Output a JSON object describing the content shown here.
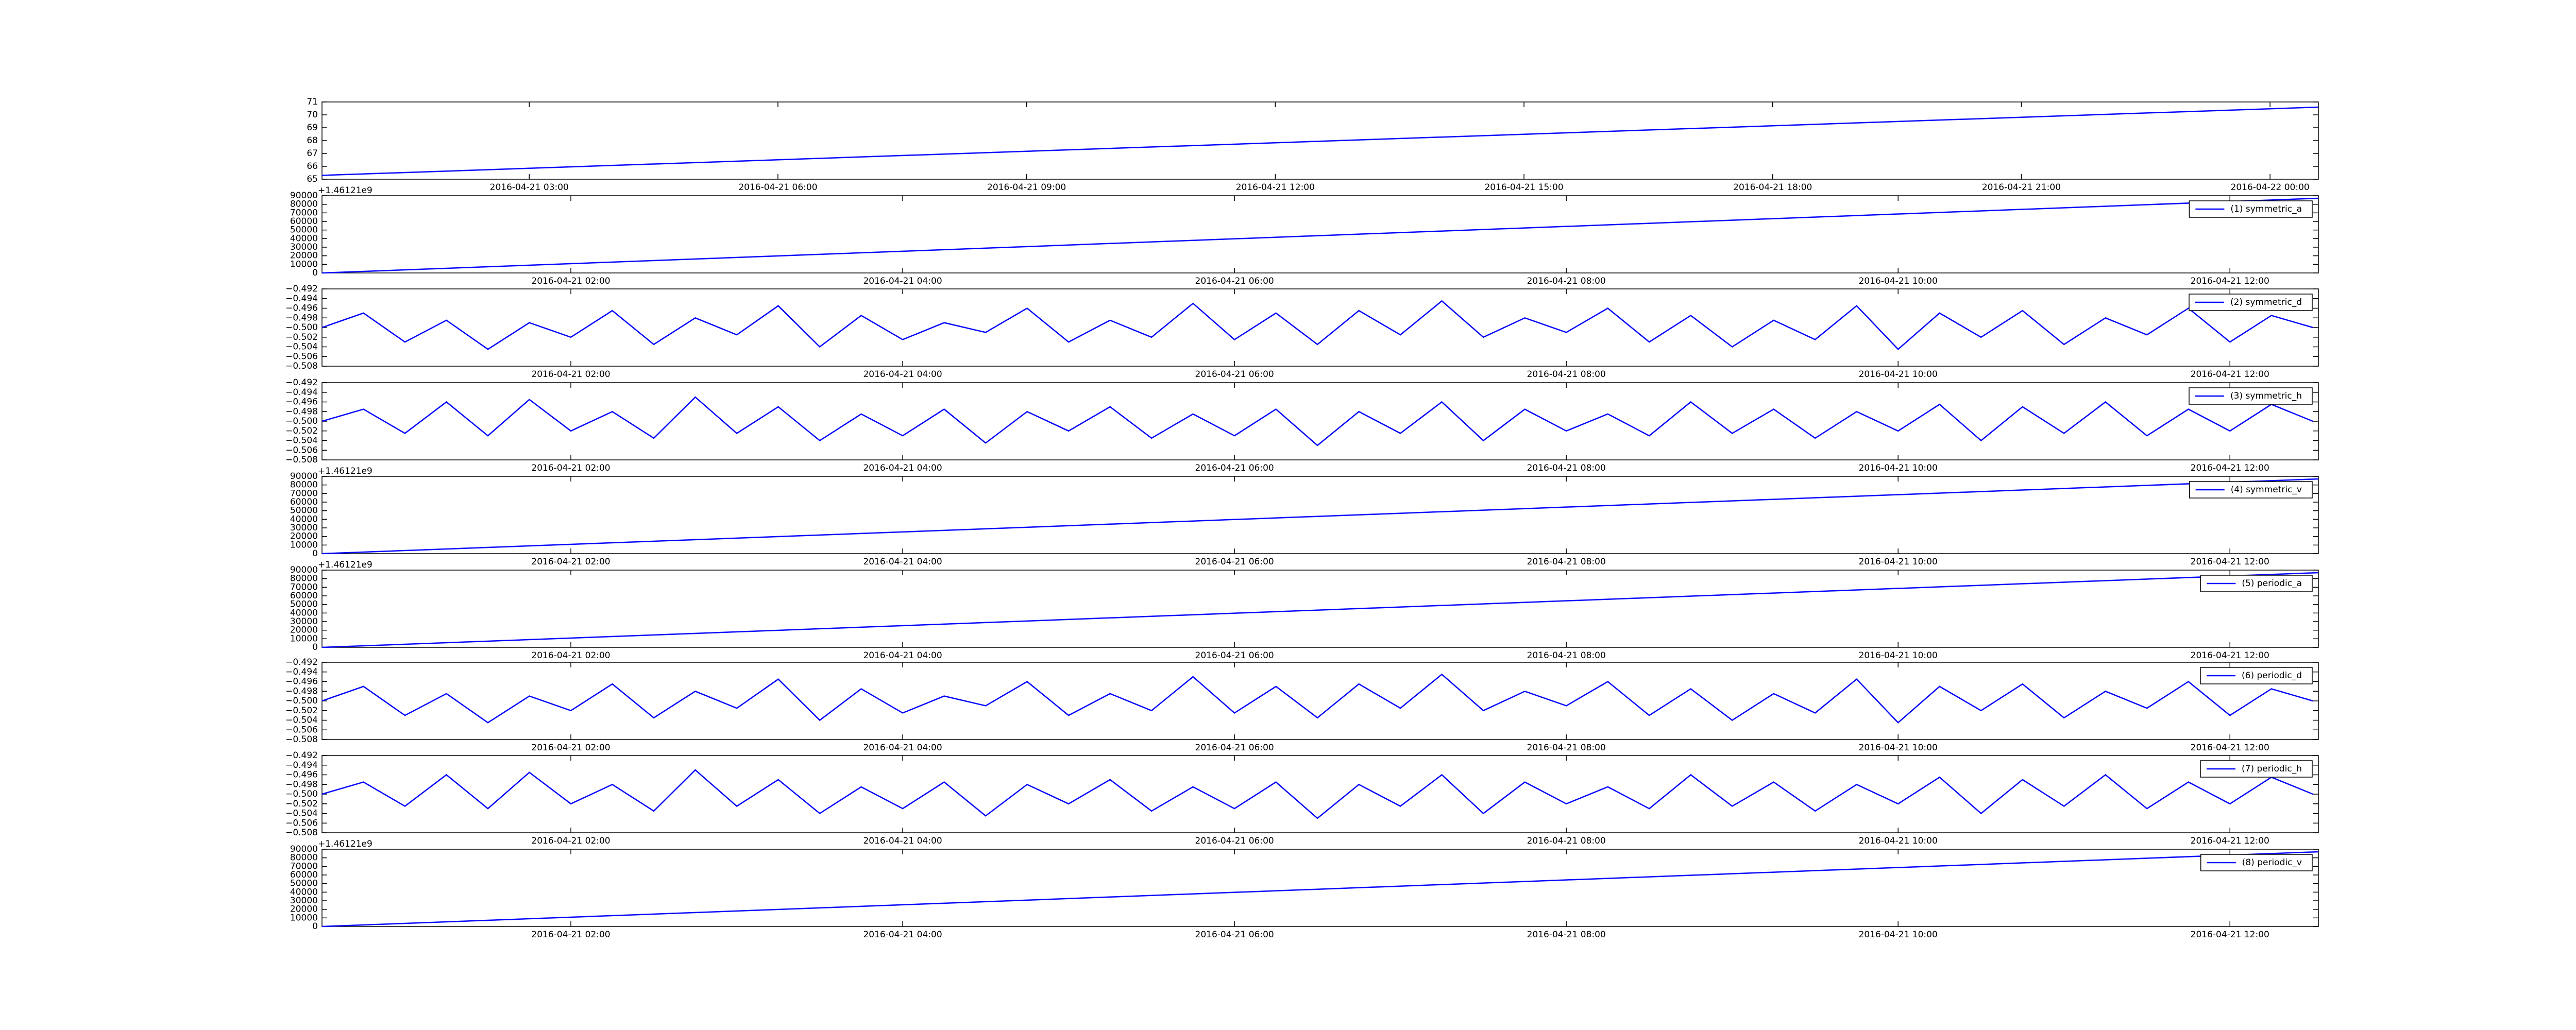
{
  "chart_data": [
    {
      "type": "line",
      "x": [
        "2016-04-21 00:30",
        "2016-04-22 00:35"
      ],
      "series": [
        {
          "color": "#0000ff",
          "values": [
            65.3,
            70.6
          ]
        }
      ],
      "xlim": [
        "2016-04-21 00:30",
        "2016-04-22 00:35"
      ],
      "xticks": [
        "2016-04-21 03:00",
        "2016-04-21 06:00",
        "2016-04-21 09:00",
        "2016-04-21 12:00",
        "2016-04-21 15:00",
        "2016-04-21 18:00",
        "2016-04-21 21:00",
        "2016-04-22 00:00"
      ],
      "ylim": [
        65,
        71
      ],
      "yticks": [
        65,
        66,
        67,
        68,
        69,
        70,
        71
      ]
    },
    {
      "type": "line",
      "offset_text": "+1.46121e9",
      "x": [
        "2016-04-21 00:30",
        "2016-04-21 12:32"
      ],
      "series": [
        {
          "name": "(1) symmetric_a",
          "color": "#0000ff",
          "values": [
            0,
            87000
          ]
        }
      ],
      "xlim": [
        "2016-04-21 00:30",
        "2016-04-21 12:32"
      ],
      "xticks": [
        "2016-04-21 02:00",
        "2016-04-21 04:00",
        "2016-04-21 06:00",
        "2016-04-21 08:00",
        "2016-04-21 10:00",
        "2016-04-21 12:00"
      ],
      "ylim": [
        0,
        90000
      ],
      "yticks": [
        0,
        10000,
        20000,
        30000,
        40000,
        50000,
        60000,
        70000,
        80000,
        90000
      ],
      "legend": "upper right"
    },
    {
      "type": "line",
      "x": [
        "2016-04-21 00:30",
        "2016-04-21 00:45",
        "2016-04-21 01:00",
        "2016-04-21 01:15",
        "2016-04-21 01:30",
        "2016-04-21 01:45",
        "2016-04-21 02:00",
        "2016-04-21 02:15",
        "2016-04-21 02:30",
        "2016-04-21 02:45",
        "2016-04-21 03:00",
        "2016-04-21 03:15",
        "2016-04-21 03:30",
        "2016-04-21 03:45",
        "2016-04-21 04:00",
        "2016-04-21 04:15",
        "2016-04-21 04:30",
        "2016-04-21 04:45",
        "2016-04-21 05:00",
        "2016-04-21 05:15",
        "2016-04-21 05:30",
        "2016-04-21 05:45",
        "2016-04-21 06:00",
        "2016-04-21 06:15",
        "2016-04-21 06:30",
        "2016-04-21 06:45",
        "2016-04-21 07:00",
        "2016-04-21 07:15",
        "2016-04-21 07:30",
        "2016-04-21 07:45",
        "2016-04-21 08:00",
        "2016-04-21 08:15",
        "2016-04-21 08:30",
        "2016-04-21 08:45",
        "2016-04-21 09:00",
        "2016-04-21 09:15",
        "2016-04-21 09:30",
        "2016-04-21 09:45",
        "2016-04-21 10:00",
        "2016-04-21 10:15",
        "2016-04-21 10:30",
        "2016-04-21 10:45",
        "2016-04-21 11:00",
        "2016-04-21 11:15",
        "2016-04-21 11:30",
        "2016-04-21 11:45",
        "2016-04-21 12:00",
        "2016-04-21 12:15",
        "2016-04-21 12:30"
      ],
      "series": [
        {
          "name": "(2) symmetric_d",
          "color": "#0000ff",
          "values": [
            -0.5,
            -0.497,
            -0.503,
            -0.4985,
            -0.5045,
            -0.499,
            -0.502,
            -0.4965,
            -0.5035,
            -0.498,
            -0.5015,
            -0.4955,
            -0.504,
            -0.4975,
            -0.5025,
            -0.499,
            -0.501,
            -0.496,
            -0.503,
            -0.4985,
            -0.502,
            -0.495,
            -0.5025,
            -0.497,
            -0.5035,
            -0.4965,
            -0.5015,
            -0.4945,
            -0.502,
            -0.498,
            -0.501,
            -0.496,
            -0.503,
            -0.4975,
            -0.504,
            -0.4985,
            -0.5025,
            -0.4955,
            -0.5045,
            -0.497,
            -0.502,
            -0.4965,
            -0.5035,
            -0.498,
            -0.5015,
            -0.496,
            -0.503,
            -0.4975,
            -0.5
          ]
        }
      ],
      "xlim": [
        "2016-04-21 00:30",
        "2016-04-21 12:32"
      ],
      "xticks": [
        "2016-04-21 02:00",
        "2016-04-21 04:00",
        "2016-04-21 06:00",
        "2016-04-21 08:00",
        "2016-04-21 10:00",
        "2016-04-21 12:00"
      ],
      "ylim": [
        -0.508,
        -0.492
      ],
      "yticks": [
        {
          "value": -0.508,
          "label": "−0.508"
        },
        {
          "value": -0.506,
          "label": "−0.506"
        },
        {
          "value": -0.504,
          "label": "−0.504"
        },
        {
          "value": -0.502,
          "label": "−0.502"
        },
        {
          "value": -0.5,
          "label": "−0.500"
        },
        {
          "value": -0.498,
          "label": "−0.498"
        },
        {
          "value": -0.496,
          "label": "−0.496"
        },
        {
          "value": -0.494,
          "label": "−0.494"
        },
        {
          "value": -0.492,
          "label": "−0.492"
        }
      ],
      "legend": "upper right"
    },
    {
      "type": "line",
      "x": [
        "2016-04-21 00:30",
        "2016-04-21 00:45",
        "2016-04-21 01:00",
        "2016-04-21 01:15",
        "2016-04-21 01:30",
        "2016-04-21 01:45",
        "2016-04-21 02:00",
        "2016-04-21 02:15",
        "2016-04-21 02:30",
        "2016-04-21 02:45",
        "2016-04-21 03:00",
        "2016-04-21 03:15",
        "2016-04-21 03:30",
        "2016-04-21 03:45",
        "2016-04-21 04:00",
        "2016-04-21 04:15",
        "2016-04-21 04:30",
        "2016-04-21 04:45",
        "2016-04-21 05:00",
        "2016-04-21 05:15",
        "2016-04-21 05:30",
        "2016-04-21 05:45",
        "2016-04-21 06:00",
        "2016-04-21 06:15",
        "2016-04-21 06:30",
        "2016-04-21 06:45",
        "2016-04-21 07:00",
        "2016-04-21 07:15",
        "2016-04-21 07:30",
        "2016-04-21 07:45",
        "2016-04-21 08:00",
        "2016-04-21 08:15",
        "2016-04-21 08:30",
        "2016-04-21 08:45",
        "2016-04-21 09:00",
        "2016-04-21 09:15",
        "2016-04-21 09:30",
        "2016-04-21 09:45",
        "2016-04-21 10:00",
        "2016-04-21 10:15",
        "2016-04-21 10:30",
        "2016-04-21 10:45",
        "2016-04-21 11:00",
        "2016-04-21 11:15",
        "2016-04-21 11:30",
        "2016-04-21 11:45",
        "2016-04-21 12:00",
        "2016-04-21 12:15",
        "2016-04-21 12:30"
      ],
      "series": [
        {
          "name": "(3) symmetric_h",
          "color": "#0000ff",
          "values": [
            -0.5,
            -0.4975,
            -0.5025,
            -0.496,
            -0.503,
            -0.4955,
            -0.502,
            -0.498,
            -0.5035,
            -0.495,
            -0.5025,
            -0.497,
            -0.504,
            -0.4985,
            -0.503,
            -0.4975,
            -0.5045,
            -0.498,
            -0.502,
            -0.497,
            -0.5035,
            -0.4985,
            -0.503,
            -0.4975,
            -0.505,
            -0.498,
            -0.5025,
            -0.496,
            -0.504,
            -0.4975,
            -0.502,
            -0.4985,
            -0.503,
            -0.496,
            -0.5025,
            -0.4975,
            -0.5035,
            -0.498,
            -0.502,
            -0.4965,
            -0.504,
            -0.497,
            -0.5025,
            -0.496,
            -0.503,
            -0.4975,
            -0.502,
            -0.4965,
            -0.5
          ]
        }
      ],
      "xlim": [
        "2016-04-21 00:30",
        "2016-04-21 12:32"
      ],
      "xticks": [
        "2016-04-21 02:00",
        "2016-04-21 04:00",
        "2016-04-21 06:00",
        "2016-04-21 08:00",
        "2016-04-21 10:00",
        "2016-04-21 12:00"
      ],
      "ylim": [
        -0.508,
        -0.492
      ],
      "yticks": [
        {
          "value": -0.508,
          "label": "−0.508"
        },
        {
          "value": -0.506,
          "label": "−0.506"
        },
        {
          "value": -0.504,
          "label": "−0.504"
        },
        {
          "value": -0.502,
          "label": "−0.502"
        },
        {
          "value": -0.5,
          "label": "−0.500"
        },
        {
          "value": -0.498,
          "label": "−0.498"
        },
        {
          "value": -0.496,
          "label": "−0.496"
        },
        {
          "value": -0.494,
          "label": "−0.494"
        },
        {
          "value": -0.492,
          "label": "−0.492"
        }
      ],
      "legend": "upper right"
    },
    {
      "type": "line",
      "offset_text": "+1.46121e9",
      "x": [
        "2016-04-21 00:30",
        "2016-04-21 12:32"
      ],
      "series": [
        {
          "name": "(4) symmetric_v",
          "color": "#0000ff",
          "values": [
            0,
            87000
          ]
        }
      ],
      "xlim": [
        "2016-04-21 00:30",
        "2016-04-21 12:32"
      ],
      "xticks": [
        "2016-04-21 02:00",
        "2016-04-21 04:00",
        "2016-04-21 06:00",
        "2016-04-21 08:00",
        "2016-04-21 10:00",
        "2016-04-21 12:00"
      ],
      "ylim": [
        0,
        90000
      ],
      "yticks": [
        0,
        10000,
        20000,
        30000,
        40000,
        50000,
        60000,
        70000,
        80000,
        90000
      ],
      "legend": "upper right"
    },
    {
      "type": "line",
      "offset_text": "+1.46121e9",
      "x": [
        "2016-04-21 00:30",
        "2016-04-21 12:32"
      ],
      "series": [
        {
          "name": "(5) periodic_a",
          "color": "#0000ff",
          "values": [
            0,
            87000
          ]
        }
      ],
      "xlim": [
        "2016-04-21 00:30",
        "2016-04-21 12:32"
      ],
      "xticks": [
        "2016-04-21 02:00",
        "2016-04-21 04:00",
        "2016-04-21 06:00",
        "2016-04-21 08:00",
        "2016-04-21 10:00",
        "2016-04-21 12:00"
      ],
      "ylim": [
        0,
        90000
      ],
      "yticks": [
        0,
        10000,
        20000,
        30000,
        40000,
        50000,
        60000,
        70000,
        80000,
        90000
      ],
      "legend": "upper right"
    },
    {
      "type": "line",
      "x": [
        "2016-04-21 00:30",
        "2016-04-21 00:45",
        "2016-04-21 01:00",
        "2016-04-21 01:15",
        "2016-04-21 01:30",
        "2016-04-21 01:45",
        "2016-04-21 02:00",
        "2016-04-21 02:15",
        "2016-04-21 02:30",
        "2016-04-21 02:45",
        "2016-04-21 03:00",
        "2016-04-21 03:15",
        "2016-04-21 03:30",
        "2016-04-21 03:45",
        "2016-04-21 04:00",
        "2016-04-21 04:15",
        "2016-04-21 04:30",
        "2016-04-21 04:45",
        "2016-04-21 05:00",
        "2016-04-21 05:15",
        "2016-04-21 05:30",
        "2016-04-21 05:45",
        "2016-04-21 06:00",
        "2016-04-21 06:15",
        "2016-04-21 06:30",
        "2016-04-21 06:45",
        "2016-04-21 07:00",
        "2016-04-21 07:15",
        "2016-04-21 07:30",
        "2016-04-21 07:45",
        "2016-04-21 08:00",
        "2016-04-21 08:15",
        "2016-04-21 08:30",
        "2016-04-21 08:45",
        "2016-04-21 09:00",
        "2016-04-21 09:15",
        "2016-04-21 09:30",
        "2016-04-21 09:45",
        "2016-04-21 10:00",
        "2016-04-21 10:15",
        "2016-04-21 10:30",
        "2016-04-21 10:45",
        "2016-04-21 11:00",
        "2016-04-21 11:15",
        "2016-04-21 11:30",
        "2016-04-21 11:45",
        "2016-04-21 12:00",
        "2016-04-21 12:15",
        "2016-04-21 12:30"
      ],
      "series": [
        {
          "name": "(6) periodic_d",
          "color": "#0000ff",
          "values": [
            -0.5,
            -0.497,
            -0.503,
            -0.4985,
            -0.5045,
            -0.499,
            -0.502,
            -0.4965,
            -0.5035,
            -0.498,
            -0.5015,
            -0.4955,
            -0.504,
            -0.4975,
            -0.5025,
            -0.499,
            -0.501,
            -0.496,
            -0.503,
            -0.4985,
            -0.502,
            -0.495,
            -0.5025,
            -0.497,
            -0.5035,
            -0.4965,
            -0.5015,
            -0.4945,
            -0.502,
            -0.498,
            -0.501,
            -0.496,
            -0.503,
            -0.4975,
            -0.504,
            -0.4985,
            -0.5025,
            -0.4955,
            -0.5045,
            -0.497,
            -0.502,
            -0.4965,
            -0.5035,
            -0.498,
            -0.5015,
            -0.496,
            -0.503,
            -0.4975,
            -0.5
          ]
        }
      ],
      "xlim": [
        "2016-04-21 00:30",
        "2016-04-21 12:32"
      ],
      "xticks": [
        "2016-04-21 02:00",
        "2016-04-21 04:00",
        "2016-04-21 06:00",
        "2016-04-21 08:00",
        "2016-04-21 10:00",
        "2016-04-21 12:00"
      ],
      "ylim": [
        -0.508,
        -0.492
      ],
      "yticks": [
        {
          "value": -0.508,
          "label": "−0.508"
        },
        {
          "value": -0.506,
          "label": "−0.506"
        },
        {
          "value": -0.504,
          "label": "−0.504"
        },
        {
          "value": -0.502,
          "label": "−0.502"
        },
        {
          "value": -0.5,
          "label": "−0.500"
        },
        {
          "value": -0.498,
          "label": "−0.498"
        },
        {
          "value": -0.496,
          "label": "−0.496"
        },
        {
          "value": -0.494,
          "label": "−0.494"
        },
        {
          "value": -0.492,
          "label": "−0.492"
        }
      ],
      "legend": "upper right"
    },
    {
      "type": "line",
      "x": [
        "2016-04-21 00:30",
        "2016-04-21 00:45",
        "2016-04-21 01:00",
        "2016-04-21 01:15",
        "2016-04-21 01:30",
        "2016-04-21 01:45",
        "2016-04-21 02:00",
        "2016-04-21 02:15",
        "2016-04-21 02:30",
        "2016-04-21 02:45",
        "2016-04-21 03:00",
        "2016-04-21 03:15",
        "2016-04-21 03:30",
        "2016-04-21 03:45",
        "2016-04-21 04:00",
        "2016-04-21 04:15",
        "2016-04-21 04:30",
        "2016-04-21 04:45",
        "2016-04-21 05:00",
        "2016-04-21 05:15",
        "2016-04-21 05:30",
        "2016-04-21 05:45",
        "2016-04-21 06:00",
        "2016-04-21 06:15",
        "2016-04-21 06:30",
        "2016-04-21 06:45",
        "2016-04-21 07:00",
        "2016-04-21 07:15",
        "2016-04-21 07:30",
        "2016-04-21 07:45",
        "2016-04-21 08:00",
        "2016-04-21 08:15",
        "2016-04-21 08:30",
        "2016-04-21 08:45",
        "2016-04-21 09:00",
        "2016-04-21 09:15",
        "2016-04-21 09:30",
        "2016-04-21 09:45",
        "2016-04-21 10:00",
        "2016-04-21 10:15",
        "2016-04-21 10:30",
        "2016-04-21 10:45",
        "2016-04-21 11:00",
        "2016-04-21 11:15",
        "2016-04-21 11:30",
        "2016-04-21 11:45",
        "2016-04-21 12:00",
        "2016-04-21 12:15",
        "2016-04-21 12:30"
      ],
      "series": [
        {
          "name": "(7) periodic_h",
          "color": "#0000ff",
          "values": [
            -0.5,
            -0.4975,
            -0.5025,
            -0.496,
            -0.503,
            -0.4955,
            -0.502,
            -0.498,
            -0.5035,
            -0.495,
            -0.5025,
            -0.497,
            -0.504,
            -0.4985,
            -0.503,
            -0.4975,
            -0.5045,
            -0.498,
            -0.502,
            -0.497,
            -0.5035,
            -0.4985,
            -0.503,
            -0.4975,
            -0.505,
            -0.498,
            -0.5025,
            -0.496,
            -0.504,
            -0.4975,
            -0.502,
            -0.4985,
            -0.503,
            -0.496,
            -0.5025,
            -0.4975,
            -0.5035,
            -0.498,
            -0.502,
            -0.4965,
            -0.504,
            -0.497,
            -0.5025,
            -0.496,
            -0.503,
            -0.4975,
            -0.502,
            -0.4965,
            -0.5
          ]
        }
      ],
      "xlim": [
        "2016-04-21 00:30",
        "2016-04-21 12:32"
      ],
      "xticks": [
        "2016-04-21 02:00",
        "2016-04-21 04:00",
        "2016-04-21 06:00",
        "2016-04-21 08:00",
        "2016-04-21 10:00",
        "2016-04-21 12:00"
      ],
      "ylim": [
        -0.508,
        -0.492
      ],
      "yticks": [
        {
          "value": -0.508,
          "label": "−0.508"
        },
        {
          "value": -0.506,
          "label": "−0.506"
        },
        {
          "value": -0.504,
          "label": "−0.504"
        },
        {
          "value": -0.502,
          "label": "−0.502"
        },
        {
          "value": -0.5,
          "label": "−0.500"
        },
        {
          "value": -0.498,
          "label": "−0.498"
        },
        {
          "value": -0.496,
          "label": "−0.496"
        },
        {
          "value": -0.494,
          "label": "−0.494"
        },
        {
          "value": -0.492,
          "label": "−0.492"
        }
      ],
      "legend": "upper right"
    },
    {
      "type": "line",
      "offset_text": "+1.46121e9",
      "x": [
        "2016-04-21 00:30",
        "2016-04-21 12:32"
      ],
      "series": [
        {
          "name": "(8) periodic_v",
          "color": "#0000ff",
          "values": [
            0,
            87000
          ]
        }
      ],
      "xlim": [
        "2016-04-21 00:30",
        "2016-04-21 12:32"
      ],
      "xticks": [
        "2016-04-21 02:00",
        "2016-04-21 04:00",
        "2016-04-21 06:00",
        "2016-04-21 08:00",
        "2016-04-21 10:00",
        "2016-04-21 12:00"
      ],
      "ylim": [
        0,
        90000
      ],
      "yticks": [
        0,
        10000,
        20000,
        30000,
        40000,
        50000,
        60000,
        70000,
        80000,
        90000
      ],
      "legend": "upper right"
    }
  ]
}
